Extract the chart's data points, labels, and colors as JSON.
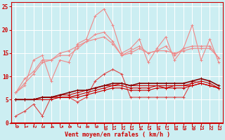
{
  "x": [
    0,
    1,
    2,
    3,
    4,
    5,
    6,
    7,
    8,
    9,
    10,
    11,
    12,
    13,
    14,
    15,
    16,
    17,
    18,
    19,
    20,
    21,
    22,
    23
  ],
  "series": [
    {
      "color": "#f08888",
      "linewidth": 0.8,
      "marker": "+",
      "markersize": 3,
      "y": [
        6.5,
        8.0,
        13.5,
        14.5,
        9.0,
        13.5,
        13.0,
        17.0,
        18.0,
        23.0,
        24.5,
        21.0,
        15.0,
        16.0,
        18.0,
        13.0,
        16.0,
        18.5,
        13.5,
        16.0,
        21.0,
        13.5,
        18.0,
        13.0
      ]
    },
    {
      "color": "#f08888",
      "linewidth": 0.8,
      "marker": "+",
      "markersize": 3,
      "y": [
        6.5,
        9.5,
        11.0,
        13.5,
        13.5,
        14.5,
        14.5,
        16.0,
        17.5,
        19.0,
        19.5,
        17.5,
        14.5,
        15.5,
        16.5,
        15.0,
        15.5,
        16.5,
        14.5,
        16.0,
        16.5,
        16.5,
        16.5,
        14.0
      ]
    },
    {
      "color": "#f08888",
      "linewidth": 0.8,
      "marker": "+",
      "markersize": 3,
      "y": [
        6.5,
        8.5,
        10.5,
        13.0,
        13.5,
        15.0,
        15.5,
        16.5,
        17.5,
        18.0,
        18.5,
        17.0,
        14.5,
        15.0,
        16.0,
        15.0,
        15.5,
        15.5,
        15.0,
        15.5,
        16.0,
        16.0,
        16.0,
        14.0
      ]
    },
    {
      "color": "#dd4444",
      "linewidth": 0.8,
      "marker": "+",
      "markersize": 3,
      "y": [
        1.5,
        2.5,
        4.0,
        1.5,
        5.5,
        5.5,
        5.5,
        4.5,
        5.5,
        9.0,
        10.5,
        11.5,
        10.5,
        5.5,
        5.5,
        5.5,
        5.5,
        5.5,
        5.5,
        5.5,
        9.0,
        8.5,
        8.0,
        7.5
      ]
    },
    {
      "color": "#cc0000",
      "linewidth": 0.8,
      "marker": "+",
      "markersize": 3,
      "y": [
        5.0,
        5.0,
        5.0,
        5.0,
        5.0,
        5.5,
        5.5,
        5.5,
        6.0,
        6.5,
        7.0,
        7.5,
        7.5,
        7.0,
        7.0,
        7.0,
        7.5,
        7.5,
        7.5,
        7.5,
        8.0,
        8.5,
        8.0,
        7.5
      ]
    },
    {
      "color": "#cc0000",
      "linewidth": 0.8,
      "marker": "+",
      "markersize": 3,
      "y": [
        5.0,
        5.0,
        5.0,
        5.5,
        5.5,
        5.5,
        5.5,
        6.0,
        6.5,
        7.0,
        7.5,
        8.0,
        8.0,
        7.5,
        7.5,
        7.5,
        8.0,
        7.5,
        8.0,
        8.0,
        8.0,
        8.5,
        8.0,
        7.5
      ]
    },
    {
      "color": "#cc0000",
      "linewidth": 0.8,
      "marker": "+",
      "markersize": 3,
      "y": [
        5.0,
        5.0,
        5.0,
        5.5,
        5.5,
        6.0,
        6.0,
        6.5,
        7.0,
        7.5,
        8.0,
        8.0,
        8.5,
        8.0,
        8.0,
        8.0,
        8.0,
        8.0,
        8.0,
        8.0,
        8.5,
        9.0,
        8.5,
        7.5
      ]
    },
    {
      "color": "#880000",
      "linewidth": 1.2,
      "marker": "+",
      "markersize": 3,
      "y": [
        5.0,
        5.0,
        5.0,
        5.5,
        5.5,
        6.0,
        6.5,
        7.0,
        7.0,
        7.5,
        8.0,
        8.5,
        8.5,
        8.0,
        8.5,
        8.5,
        8.5,
        8.5,
        8.5,
        8.5,
        9.0,
        9.5,
        9.0,
        8.0
      ]
    }
  ],
  "xlim": [
    -0.5,
    23.5
  ],
  "ylim": [
    0,
    26
  ],
  "yticks": [
    0,
    5,
    10,
    15,
    20,
    25
  ],
  "xticks": [
    0,
    1,
    2,
    3,
    4,
    5,
    6,
    7,
    8,
    9,
    10,
    11,
    12,
    13,
    14,
    15,
    16,
    17,
    18,
    19,
    20,
    21,
    22,
    23
  ],
  "xlabel": "Vent moyen/en rafales ( km/h )",
  "background_color": "#cceef2",
  "grid_color": "#aadddd",
  "tick_color": "#cc0000",
  "label_color": "#cc0000",
  "spine_color": "#cc0000",
  "bottom_line_color": "#cc0000"
}
